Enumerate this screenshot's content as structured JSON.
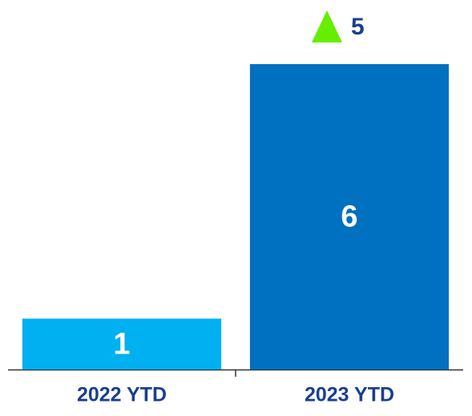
{
  "chart_data": {
    "type": "bar",
    "categories": [
      "2022 YTD",
      "2023 YTD"
    ],
    "values": [
      1,
      6
    ],
    "colors": [
      "#00b0f0",
      "#0070c0"
    ],
    "annotation": {
      "value": 5,
      "direction": "up",
      "color": "#66ee00"
    }
  }
}
